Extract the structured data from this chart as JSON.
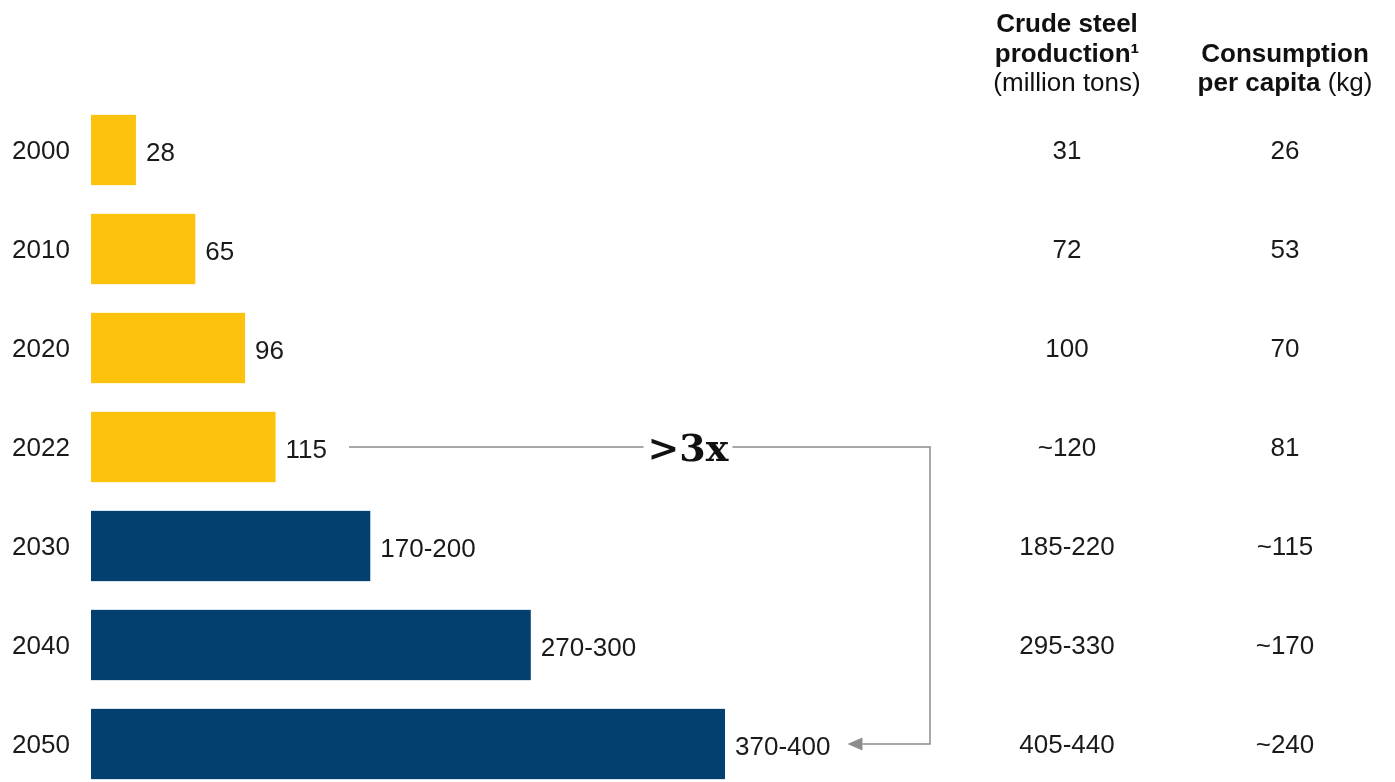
{
  "chart_data": [
    {
      "type": "bar",
      "orientation": "horizontal",
      "categories": [
        "2000",
        "2010",
        "2020",
        "2022",
        "2030",
        "2040",
        "2050"
      ],
      "values": [
        28,
        65,
        96,
        115,
        174,
        274,
        395
      ],
      "colors": [
        "#fdc20b",
        "#fdc20b",
        "#fdc20b",
        "#fdc20b",
        "#033f6f",
        "#033f6f",
        "#033f6f"
      ],
      "value_labels": [
        "28",
        "65",
        "96",
        "115",
        "170-200",
        "270-300",
        "370-400"
      ],
      "tick_labels": "y",
      "annotations": [
        ">3x"
      ]
    },
    {
      "type": "other",
      "title": "Crude steel production¹ (million tons)",
      "annotations": [
        "31",
        "72",
        "100",
        "~120",
        "185-220",
        "295-330",
        "405-440"
      ]
    },
    {
      "type": "other",
      "title": "Consumption per capita (kg)",
      "annotations": [
        "26",
        "53",
        "70",
        "81",
        "~115",
        "~170",
        "~240"
      ]
    }
  ]
}
